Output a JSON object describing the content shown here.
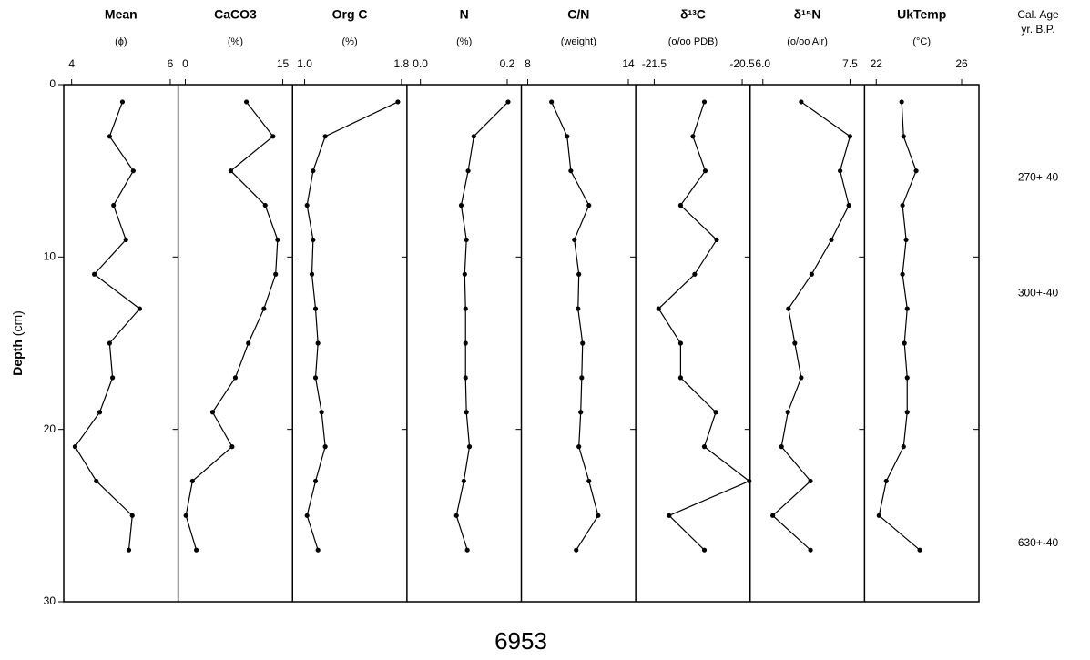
{
  "title": "6953",
  "depth_axis": {
    "label": "Depth",
    "unit": "(cm)",
    "ylim": [
      0,
      30
    ],
    "yticks": [
      0,
      10,
      20,
      30
    ]
  },
  "depth": [
    1,
    3,
    5,
    7,
    9,
    11,
    13,
    15,
    17,
    19,
    21,
    23,
    25,
    27
  ],
  "age_title": "Cal. Age",
  "age_unit": "yr. B.P.",
  "ages": [
    {
      "depth": 5.4,
      "label": "270+-40"
    },
    {
      "depth": 12.1,
      "label": "300+-40"
    },
    {
      "depth": 26.6,
      "label": "630+-40"
    }
  ],
  "chart_data": [
    {
      "type": "line",
      "title": "Mean",
      "subtitle": "(ϕ)",
      "color": "#000000",
      "xlim": [
        3.84,
        6.16
      ],
      "xticks": [
        4,
        6
      ],
      "values": [
        5.03,
        4.77,
        5.25,
        4.85,
        5.1,
        4.46,
        5.38,
        4.77,
        4.83,
        4.57,
        4.07,
        4.5,
        5.23,
        5.16
      ]
    },
    {
      "type": "line",
      "title": "CaCO3",
      "subtitle": "(%)",
      "color": "#000000",
      "xlim": [
        -1.1,
        16.5
      ],
      "xticks": [
        0,
        15
      ],
      "values": [
        9.4,
        13.5,
        7.0,
        12.3,
        14.2,
        13.9,
        12.1,
        9.7,
        7.7,
        4.2,
        7.2,
        1.1,
        0.1,
        1.7
      ]
    },
    {
      "type": "line",
      "title": "Org C",
      "subtitle": "(%)",
      "color": "#000000",
      "xlim": [
        0.9,
        1.845
      ],
      "xticks": [
        {
          "value": 1.0,
          "label": "1.0"
        },
        1.8
      ],
      "values": [
        1.77,
        1.17,
        1.07,
        1.02,
        1.07,
        1.06,
        1.09,
        1.11,
        1.09,
        1.14,
        1.17,
        1.09,
        1.02,
        1.11
      ]
    },
    {
      "type": "line",
      "title": "N",
      "subtitle": "(%)",
      "color": "#000000",
      "xlim": [
        -0.031,
        0.2325
      ],
      "xticks": [
        {
          "value": 0,
          "label": "0.0"
        },
        0.2
      ],
      "values": [
        0.202,
        0.123,
        0.11,
        0.094,
        0.106,
        0.102,
        0.104,
        0.104,
        0.104,
        0.106,
        0.113,
        0.1,
        0.083,
        0.108
      ]
    },
    {
      "type": "line",
      "title": "C/N",
      "subtitle": "(weight)",
      "color": "#000000",
      "xlim": [
        7.62,
        14.44
      ],
      "xticks": [
        8,
        14
      ],
      "values": [
        9.42,
        10.35,
        10.57,
        11.65,
        10.78,
        11.05,
        11.0,
        11.27,
        11.22,
        11.16,
        11.05,
        11.65,
        12.2,
        10.89
      ]
    },
    {
      "type": "line",
      "title": "δ¹³C",
      "subtitle": "(o/oo PDB)",
      "color": "#000000",
      "xlim": [
        -21.71,
        -20.41
      ],
      "xticks": [
        -21.5,
        -20.5
      ],
      "values": [
        -20.93,
        -21.06,
        -20.92,
        -21.2,
        -20.79,
        -21.04,
        -21.45,
        -21.2,
        -21.2,
        -20.8,
        -20.93,
        -20.42,
        -21.33,
        -20.93
      ]
    },
    {
      "type": "line",
      "title": "δ¹⁵N",
      "subtitle": "(o/oo Air)",
      "color": "#000000",
      "xlim": [
        5.78,
        7.75
      ],
      "xticks": [
        {
          "value": 6,
          "label": "6.0"
        },
        7.5
      ],
      "values": [
        6.66,
        7.5,
        7.33,
        7.48,
        7.18,
        6.84,
        6.44,
        6.55,
        6.66,
        6.43,
        6.32,
        6.82,
        6.17,
        6.82
      ]
    },
    {
      "type": "line",
      "title": "UkTemp",
      "subtitle": "(°C)",
      "color": "#000000",
      "xlim": [
        21.45,
        26.81
      ],
      "xticks": [
        22,
        26
      ],
      "values": [
        23.19,
        23.28,
        23.87,
        23.23,
        23.4,
        23.23,
        23.45,
        23.32,
        23.45,
        23.45,
        23.28,
        22.47,
        22.13,
        24.04
      ]
    }
  ]
}
